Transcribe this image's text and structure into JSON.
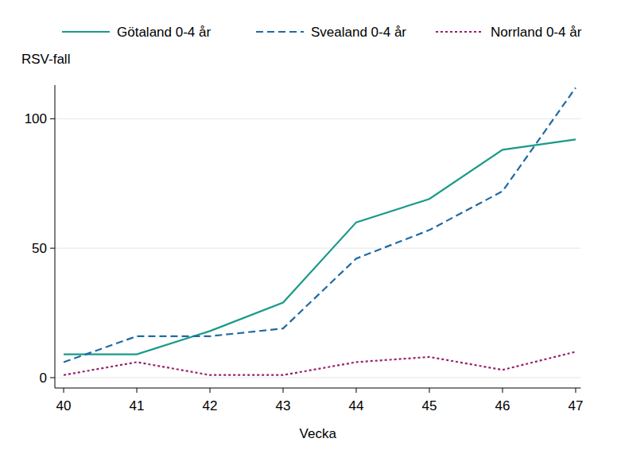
{
  "chart_data": {
    "type": "line",
    "x_label": "Vecka",
    "y_label": "RSV-fall",
    "x": [
      40,
      41,
      42,
      43,
      44,
      45,
      46,
      47
    ],
    "series": [
      {
        "name": "Götaland 0-4 år",
        "color": "#1a9a8a",
        "line_style": "solid",
        "values": [
          9,
          9,
          18,
          29,
          60,
          69,
          88,
          92
        ]
      },
      {
        "name": "Svealand 0-4 år",
        "color": "#1f6aa5",
        "line_style": "dashed",
        "values": [
          6,
          16,
          16,
          19,
          46,
          57,
          72,
          112
        ]
      },
      {
        "name": "Norrland 0-4 år",
        "color": "#9b1f6e",
        "line_style": "dotted",
        "values": [
          1,
          6,
          1,
          1,
          6,
          8,
          3,
          10
        ]
      }
    ],
    "xlim": [
      39.88,
      47.07
    ],
    "ylim": [
      -4,
      113
    ],
    "xticks": [
      40,
      41,
      42,
      43,
      44,
      45,
      46,
      47
    ],
    "yticks": [
      0,
      50,
      100
    ],
    "grid": true,
    "legend": "top"
  }
}
